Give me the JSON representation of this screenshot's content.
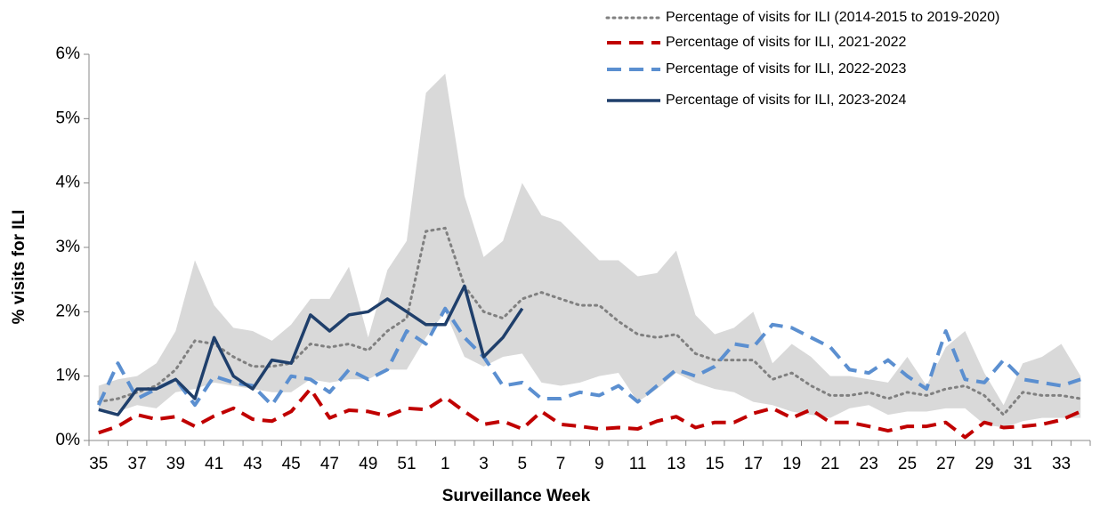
{
  "chart_data": {
    "type": "line",
    "x_label": "Surveillance Week",
    "y_label": "% visits for ILI",
    "categories": [
      "35",
      null,
      "37",
      null,
      "39",
      null,
      "41",
      null,
      "43",
      null,
      "45",
      null,
      "47",
      null,
      "49",
      null,
      "51",
      null,
      "1",
      null,
      "3",
      null,
      "5",
      null,
      "7",
      null,
      "9",
      null,
      "11",
      null,
      "13",
      null,
      "15",
      null,
      "17",
      null,
      "19",
      null,
      "21",
      null,
      "23",
      null,
      "25",
      null,
      "27",
      null,
      "29",
      null,
      "31",
      null,
      "33",
      null
    ],
    "ylim": [
      0,
      6
    ],
    "yticks": [
      {
        "value": 0,
        "label": "0%"
      },
      {
        "value": 1,
        "label": "1%"
      },
      {
        "value": 2,
        "label": "2%"
      },
      {
        "value": 3,
        "label": "3%"
      },
      {
        "value": 4,
        "label": "4%"
      },
      {
        "value": 5,
        "label": "5%"
      },
      {
        "value": 6,
        "label": "6%"
      }
    ],
    "grid": false,
    "legend": "top-right",
    "band": {
      "color": "#d9d9d9",
      "upper": [
        0.85,
        0.95,
        1.0,
        1.2,
        1.7,
        2.8,
        2.1,
        1.75,
        1.7,
        1.55,
        1.8,
        2.2,
        2.2,
        2.7,
        1.6,
        2.65,
        3.1,
        5.4,
        5.7,
        3.8,
        2.85,
        3.1,
        4.0,
        3.5,
        3.4,
        3.1,
        2.8,
        2.8,
        2.55,
        2.6,
        2.95,
        1.95,
        1.65,
        1.75,
        2.0,
        1.2,
        1.5,
        1.3,
        1.0,
        1.0,
        0.95,
        0.9,
        1.3,
        0.85,
        1.45,
        1.7,
        1.05,
        0.55,
        1.2,
        1.3,
        1.5,
        1.0
      ],
      "lower": [
        0.45,
        0.45,
        0.55,
        0.5,
        0.75,
        0.8,
        0.9,
        0.85,
        0.8,
        0.75,
        0.75,
        0.95,
        0.9,
        0.95,
        0.95,
        1.1,
        1.1,
        1.6,
        2.0,
        1.3,
        1.15,
        1.3,
        1.35,
        0.9,
        0.85,
        0.9,
        1.0,
        1.05,
        0.6,
        0.8,
        1.05,
        0.9,
        0.8,
        0.75,
        0.6,
        0.55,
        0.45,
        0.4,
        0.35,
        0.5,
        0.55,
        0.4,
        0.45,
        0.45,
        0.5,
        0.5,
        0.25,
        0.2,
        0.3,
        0.35,
        0.35,
        0.35
      ]
    },
    "series": [
      {
        "name": "Percentage of visits for ILI (2014-2015 to 2019-2020)",
        "color": "#808080",
        "style": "dotted",
        "values": [
          0.6,
          0.65,
          0.75,
          0.85,
          1.1,
          1.55,
          1.5,
          1.3,
          1.15,
          1.15,
          1.2,
          1.5,
          1.45,
          1.5,
          1.4,
          1.7,
          1.9,
          3.25,
          3.3,
          2.4,
          2.0,
          1.9,
          2.2,
          2.3,
          2.2,
          2.1,
          2.1,
          1.85,
          1.65,
          1.6,
          1.65,
          1.35,
          1.25,
          1.25,
          1.25,
          0.95,
          1.05,
          0.85,
          0.7,
          0.7,
          0.75,
          0.65,
          0.75,
          0.7,
          0.8,
          0.85,
          0.7,
          0.4,
          0.75,
          0.7,
          0.7,
          0.65
        ]
      },
      {
        "name": "Percentage of visits for ILI, 2021-2022",
        "color": "#c00000",
        "style": "dashed",
        "values": [
          0.12,
          0.22,
          0.4,
          0.33,
          0.37,
          0.22,
          0.38,
          0.5,
          0.33,
          0.3,
          0.45,
          0.8,
          0.35,
          0.47,
          0.45,
          0.38,
          0.5,
          0.48,
          0.67,
          0.45,
          0.25,
          0.3,
          0.18,
          0.45,
          0.25,
          0.22,
          0.18,
          0.2,
          0.18,
          0.3,
          0.37,
          0.2,
          0.28,
          0.28,
          0.42,
          0.5,
          0.35,
          0.48,
          0.28,
          0.28,
          0.22,
          0.15,
          0.22,
          0.22,
          0.28,
          0.05,
          0.28,
          0.2,
          0.22,
          0.25,
          0.32,
          0.45
        ]
      },
      {
        "name": "Percentage of visits for ILI, 2022-2023",
        "color": "#5b8fd0",
        "style": "dashed",
        "values": [
          0.55,
          1.2,
          0.65,
          0.8,
          0.95,
          0.55,
          1.0,
          0.9,
          0.85,
          0.55,
          1.0,
          0.95,
          0.75,
          1.1,
          0.95,
          1.1,
          1.7,
          1.5,
          2.05,
          1.6,
          1.3,
          0.85,
          0.9,
          0.65,
          0.65,
          0.75,
          0.7,
          0.85,
          0.6,
          0.85,
          1.1,
          1.0,
          1.15,
          1.5,
          1.45,
          1.8,
          1.75,
          1.6,
          1.45,
          1.1,
          1.05,
          1.25,
          1.0,
          0.8,
          1.7,
          0.95,
          0.9,
          1.25,
          0.95,
          0.9,
          0.85,
          0.95
        ]
      },
      {
        "name": "Percentage of visits for ILI, 2023-2024",
        "color": "#1f3f6b",
        "style": "solid",
        "values": [
          0.48,
          0.4,
          0.8,
          0.8,
          0.95,
          0.65,
          1.6,
          1.0,
          0.8,
          1.25,
          1.2,
          1.95,
          1.7,
          1.95,
          2.0,
          2.2,
          2.0,
          1.8,
          1.8,
          2.4,
          1.3,
          1.6,
          2.05,
          null,
          null,
          null,
          null,
          null,
          null,
          null,
          null,
          null,
          null,
          null,
          null,
          null,
          null,
          null,
          null,
          null,
          null,
          null,
          null,
          null,
          null,
          null,
          null,
          null,
          null,
          null,
          null,
          null
        ]
      }
    ]
  }
}
